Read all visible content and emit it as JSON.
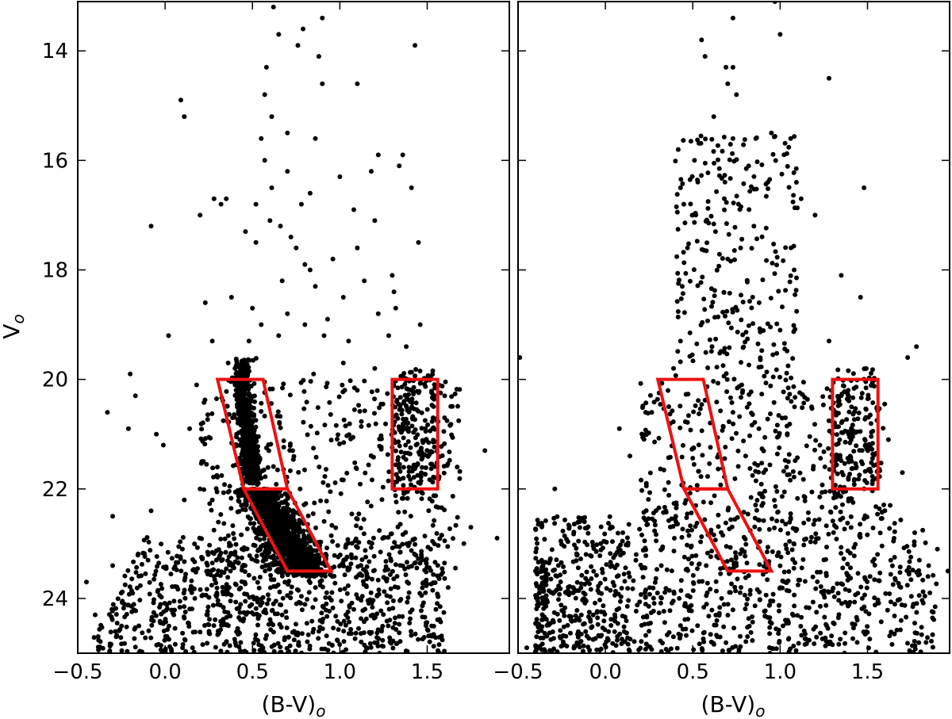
{
  "chart_data": [
    {
      "type": "scatter",
      "panel": "left",
      "xlabel": "(B-V)",
      "xlabel_subscript": "o",
      "ylabel": "V",
      "ylabel_subscript": "o",
      "xlim": [
        -0.5,
        1.97
      ],
      "ylim": [
        25.0,
        13.1
      ],
      "y_inverted": true,
      "x_ticks": [
        -0.5,
        0.0,
        0.5,
        1.0,
        1.5
      ],
      "x_tick_labels": [
        "−0.5",
        "0.0",
        "0.5",
        "1.0",
        "1.5"
      ],
      "y_ticks": [
        14,
        16,
        18,
        20,
        22,
        24
      ],
      "y_tick_labels": [
        "14",
        "16",
        "18",
        "20",
        "22",
        "24"
      ],
      "grid": false,
      "point_color": "#000000",
      "region_color": "#ee1111",
      "regions": [
        {
          "name": "upper-main-sequence-box",
          "points": [
            [
              0.3,
              20.0
            ],
            [
              0.56,
              20.0
            ],
            [
              0.7,
              22.0
            ],
            [
              0.45,
              22.0
            ]
          ]
        },
        {
          "name": "lower-main-sequence-box",
          "points": [
            [
              0.45,
              22.0
            ],
            [
              0.7,
              22.0
            ],
            [
              0.95,
              23.5
            ],
            [
              0.7,
              23.5
            ]
          ]
        },
        {
          "name": "red-field-box",
          "points": [
            [
              1.3,
              20.0
            ],
            [
              1.56,
              20.0
            ],
            [
              1.56,
              22.0
            ],
            [
              1.3,
              22.0
            ]
          ]
        }
      ],
      "points": [
        [
          0.62,
          13.2
        ],
        [
          0.65,
          13.7
        ],
        [
          0.79,
          13.6
        ],
        [
          0.76,
          13.9
        ],
        [
          0.9,
          13.4
        ],
        [
          0.88,
          14.1
        ],
        [
          0.58,
          14.3
        ],
        [
          1.43,
          13.9
        ],
        [
          0.09,
          14.9
        ],
        [
          0.11,
          15.2
        ],
        [
          0.57,
          14.8
        ],
        [
          0.61,
          15.2
        ],
        [
          0.55,
          15.6
        ],
        [
          0.7,
          15.5
        ],
        [
          0.86,
          15.6
        ],
        [
          0.9,
          14.6
        ],
        [
          1.1,
          14.6
        ],
        [
          1.36,
          15.9
        ],
        [
          1.34,
          16.1
        ],
        [
          1.41,
          16.5
        ],
        [
          0.28,
          16.7
        ],
        [
          0.32,
          16.8
        ],
        [
          0.35,
          16.7
        ],
        [
          0.2,
          17.0
        ],
        [
          -0.08,
          17.2
        ],
        [
          0.52,
          16.8
        ],
        [
          0.6,
          17.1
        ],
        [
          0.83,
          16.6
        ],
        [
          0.66,
          17.2
        ],
        [
          1.0,
          16.3
        ],
        [
          1.22,
          15.9
        ],
        [
          1.18,
          16.2
        ],
        [
          1.08,
          16.9
        ],
        [
          1.2,
          17.1
        ],
        [
          1.45,
          17.5
        ],
        [
          0.46,
          17.3
        ],
        [
          0.52,
          17.5
        ],
        [
          0.96,
          17.8
        ],
        [
          1.1,
          17.6
        ],
        [
          1.3,
          18.1
        ],
        [
          0.23,
          18.6
        ],
        [
          0.38,
          18.5
        ],
        [
          0.5,
          18.7
        ],
        [
          0.86,
          18.3
        ],
        [
          1.02,
          18.5
        ],
        [
          1.32,
          18.7
        ],
        [
          1.46,
          19.0
        ],
        [
          0.27,
          19.3
        ],
        [
          0.48,
          19.3
        ],
        [
          0.91,
          19.2
        ],
        [
          1.05,
          19.3
        ],
        [
          1.38,
          19.4
        ],
        [
          0.02,
          19.2
        ],
        [
          -0.2,
          19.9
        ],
        [
          -0.17,
          20.3
        ],
        [
          0.18,
          20.1
        ],
        [
          1.2,
          19.8
        ],
        [
          1.1,
          20.2
        ],
        [
          1.6,
          20.3
        ],
        [
          0.85,
          19.9
        ],
        [
          1.02,
          19.7
        ],
        [
          0.83,
          18.0
        ],
        [
          0.7,
          18.8
        ],
        [
          0.75,
          17.6
        ],
        [
          0.61,
          16.5
        ],
        [
          0.7,
          16.2
        ],
        [
          0.57,
          16.0
        ],
        [
          0.8,
          17.9
        ],
        [
          0.72,
          17.4
        ],
        [
          0.78,
          16.8
        ],
        [
          0.8,
          19.0
        ],
        [
          0.65,
          19.2
        ],
        [
          1.22,
          18.8
        ],
        [
          1.14,
          18.2
        ],
        [
          1.28,
          19.2
        ],
        [
          1.31,
          18.4
        ],
        [
          0.4,
          19.8
        ],
        [
          0.55,
          19.0
        ],
        [
          0.67,
          18.2
        ],
        [
          0.93,
          18.9
        ],
        [
          -0.33,
          20.6
        ],
        [
          -0.21,
          20.9
        ],
        [
          -0.05,
          21.0
        ],
        [
          -0.01,
          21.2
        ],
        [
          0.14,
          20.9
        ],
        [
          0.21,
          21.5
        ],
        [
          0.11,
          22.2
        ],
        [
          -0.08,
          22.4
        ],
        [
          -0.3,
          22.5
        ],
        [
          1.83,
          21.3
        ],
        [
          1.9,
          22.9
        ],
        [
          1.75,
          22.7
        ],
        [
          0.2,
          22.0
        ],
        [
          -0.45,
          23.7
        ],
        [
          -0.3,
          23.4
        ],
        [
          -0.4,
          24.3
        ],
        [
          -0.28,
          24.7
        ],
        [
          -0.15,
          24.5
        ],
        [
          0.1,
          24.9
        ],
        [
          0.35,
          24.8
        ],
        [
          1.71,
          23.0
        ],
        [
          1.62,
          23.8
        ],
        [
          1.55,
          24.2
        ],
        [
          0.4,
          23.2
        ],
        [
          0.28,
          23.6
        ],
        [
          0.17,
          24.0
        ],
        [
          0.05,
          24.3
        ],
        [
          0.62,
          24.1
        ],
        [
          1.08,
          24.2
        ],
        [
          0.88,
          24.6
        ]
      ],
      "dense_regions": [
        {
          "name": "upper-ms",
          "x": [
            0.42,
            0.59
          ],
          "y": [
            19.6,
            21.9
          ],
          "count": 700
        },
        {
          "name": "lower-ms",
          "x": [
            0.46,
            0.92
          ],
          "y": [
            22.0,
            23.6
          ],
          "count": 1100
        },
        {
          "name": "scatter-field",
          "x": [
            0.2,
            1.7
          ],
          "y": [
            20.0,
            23.5
          ],
          "count": 450
        },
        {
          "name": "red-giants",
          "x": [
            1.3,
            1.56
          ],
          "y": [
            19.8,
            22.2
          ],
          "count": 200
        },
        {
          "name": "faint-field",
          "x": [
            -0.45,
            1.6
          ],
          "y": [
            22.8,
            25.0
          ],
          "count": 900
        }
      ]
    },
    {
      "type": "scatter",
      "panel": "right",
      "xlabel": "(B-V)",
      "xlabel_subscript": "o",
      "xlim": [
        -0.5,
        1.97
      ],
      "ylim": [
        25.0,
        13.1
      ],
      "y_inverted": true,
      "x_ticks": [
        -0.5,
        0.0,
        0.5,
        1.0,
        1.5
      ],
      "x_tick_labels": [
        "−0.5",
        "0.0",
        "0.5",
        "1.0",
        "1.5"
      ],
      "y_ticks": [
        14,
        16,
        18,
        20,
        22,
        24
      ],
      "grid": false,
      "point_color": "#000000",
      "region_color": "#ee1111",
      "regions": [
        {
          "name": "upper-main-sequence-box",
          "points": [
            [
              0.3,
              20.0
            ],
            [
              0.56,
              20.0
            ],
            [
              0.7,
              22.0
            ],
            [
              0.45,
              22.0
            ]
          ]
        },
        {
          "name": "lower-main-sequence-box",
          "points": [
            [
              0.45,
              22.0
            ],
            [
              0.7,
              22.0
            ],
            [
              0.95,
              23.5
            ],
            [
              0.7,
              23.5
            ]
          ]
        },
        {
          "name": "red-field-box",
          "points": [
            [
              1.3,
              20.0
            ],
            [
              1.56,
              20.0
            ],
            [
              1.56,
              22.0
            ],
            [
              1.3,
              22.0
            ]
          ]
        }
      ],
      "points": [
        [
          0.97,
          13.1
        ],
        [
          0.73,
          13.4
        ],
        [
          1.0,
          13.7
        ],
        [
          0.55,
          13.8
        ],
        [
          0.57,
          14.1
        ],
        [
          0.69,
          14.3
        ],
        [
          0.73,
          14.3
        ],
        [
          0.7,
          14.6
        ],
        [
          1.28,
          14.5
        ],
        [
          0.75,
          14.8
        ],
        [
          0.62,
          15.2
        ],
        [
          0.95,
          15.5
        ],
        [
          0.73,
          15.6
        ],
        [
          1.06,
          15.6
        ],
        [
          0.51,
          16.0
        ],
        [
          0.82,
          16.1
        ],
        [
          0.43,
          16.5
        ],
        [
          0.93,
          16.4
        ],
        [
          1.12,
          16.7
        ],
        [
          1.48,
          16.5
        ],
        [
          0.63,
          17.3
        ],
        [
          0.85,
          17.2
        ],
        [
          1.2,
          17.0
        ],
        [
          0.47,
          17.6
        ],
        [
          0.7,
          17.8
        ],
        [
          1.08,
          18.0
        ],
        [
          1.35,
          18.1
        ],
        [
          0.44,
          18.3
        ],
        [
          0.88,
          18.6
        ],
        [
          1.46,
          18.5
        ],
        [
          0.43,
          19.3
        ],
        [
          0.61,
          19.4
        ],
        [
          1.0,
          19.1
        ],
        [
          1.28,
          19.3
        ],
        [
          0.39,
          19.8
        ],
        [
          0.78,
          20.1
        ],
        [
          1.73,
          19.6
        ],
        [
          1.78,
          19.4
        ],
        [
          1.18,
          20.5
        ],
        [
          1.03,
          20.7
        ],
        [
          -0.49,
          19.6
        ],
        [
          0.23,
          20.6
        ],
        [
          0.08,
          20.9
        ],
        [
          -0.29,
          22.0
        ],
        [
          0.14,
          21.4
        ],
        [
          1.62,
          21.1
        ],
        [
          1.7,
          21.7
        ],
        [
          1.63,
          22.3
        ],
        [
          -0.12,
          22.6
        ],
        [
          0.04,
          22.7
        ],
        [
          0.1,
          22.8
        ],
        [
          1.9,
          23.1
        ],
        [
          1.96,
          23.5
        ],
        [
          1.85,
          23.4
        ],
        [
          -0.4,
          23.5
        ],
        [
          -0.35,
          24.1
        ],
        [
          -0.3,
          24.4
        ],
        [
          -0.25,
          24.7
        ],
        [
          -0.45,
          24.9
        ],
        [
          1.77,
          22.8
        ]
      ],
      "dense_regions": [
        {
          "name": "upper-field",
          "x": [
            0.4,
            1.1
          ],
          "y": [
            15.5,
            20.0
          ],
          "count": 260
        },
        {
          "name": "scatter-field",
          "x": [
            0.2,
            1.6
          ],
          "y": [
            20.0,
            22.8
          ],
          "count": 380
        },
        {
          "name": "red-giants",
          "x": [
            1.28,
            1.56
          ],
          "y": [
            19.8,
            22.2
          ],
          "count": 150
        },
        {
          "name": "faint-field",
          "x": [
            -0.4,
            1.9
          ],
          "y": [
            22.5,
            25.0
          ],
          "count": 1050
        }
      ]
    }
  ]
}
